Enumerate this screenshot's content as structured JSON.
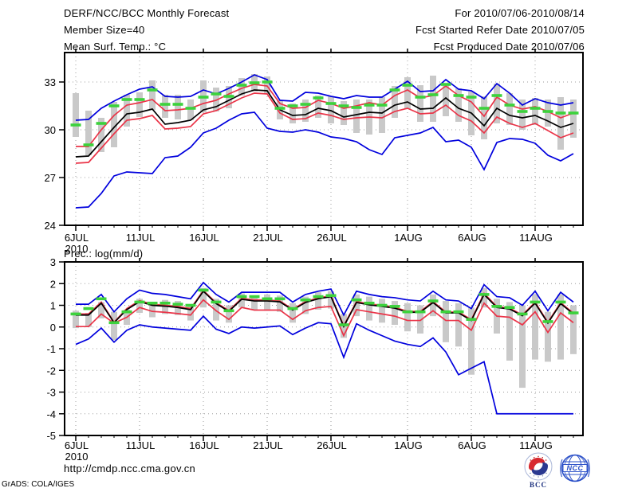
{
  "header": {
    "title": "DERF/NCC/BCC Monthly Forecast",
    "member_size": "Member Size=40",
    "for_range": "For 2010/07/06-2010/08/14",
    "fcst_refer_date": "Fcst Started Refer Date 2010/07/05",
    "fcst_produced_date": "Fcst Produced Date 2010/07/06"
  },
  "footer": {
    "url": "http://cmdp.ncc.cma.gov.cn",
    "credit": "GrADS: COLA/IGES",
    "logos": [
      {
        "label": "BCC"
      },
      {
        "label": "NCC"
      }
    ]
  },
  "colors": {
    "blue": "#0000dd",
    "red": "#ea3448",
    "black": "#000000",
    "green": "#3cd23c",
    "bar_gray": "#c9c9c9",
    "grid": "#9c9c9c"
  },
  "chart_data": [
    {
      "id": "temp",
      "type": "line",
      "title": "Mean Surf. Temp.: °C",
      "ylim": [
        24,
        34.85
      ],
      "yticks": [
        24,
        27,
        30,
        33
      ],
      "grid": true,
      "x": {
        "tick_labels": [
          "6JUL",
          "11JUL",
          "16JUL",
          "21JUL",
          "26JUL",
          "1AUG",
          "6AUG",
          "11AUG"
        ],
        "tick_days": [
          0,
          5,
          10,
          15,
          20,
          26,
          31,
          36
        ],
        "year_label": "2010",
        "n_points": 40
      },
      "series": [
        {
          "name": "ensemble-max",
          "color": "blue",
          "values": [
            30.6,
            30.65,
            31.35,
            31.8,
            32.2,
            32.55,
            32.7,
            32.1,
            32.05,
            32.1,
            32.5,
            32.25,
            32.6,
            33.0,
            33.45,
            33.15,
            31.85,
            31.8,
            32.35,
            32.3,
            32.1,
            31.95,
            32.15,
            32.05,
            32.05,
            32.55,
            33.05,
            32.4,
            32.45,
            33.15,
            32.55,
            32.45,
            31.95,
            32.9,
            32.3,
            31.55,
            31.95,
            31.7,
            31.55,
            31.7
          ]
        },
        {
          "name": "mean-plus-std",
          "color": "red",
          "values": [
            28.95,
            28.95,
            30.0,
            30.9,
            31.55,
            31.7,
            31.9,
            31.2,
            31.25,
            31.35,
            31.65,
            31.85,
            32.25,
            32.6,
            32.85,
            32.75,
            31.65,
            31.35,
            31.4,
            31.85,
            31.65,
            31.35,
            31.5,
            31.7,
            31.55,
            32.15,
            32.5,
            32.0,
            32.15,
            32.75,
            32.15,
            31.75,
            30.85,
            32.05,
            31.55,
            31.3,
            31.45,
            31.15,
            30.75,
            31.05
          ]
        },
        {
          "name": "ensemble-mean",
          "color": "black",
          "values": [
            28.3,
            28.35,
            29.25,
            30.15,
            31.0,
            31.1,
            31.3,
            30.35,
            30.45,
            30.6,
            31.25,
            31.45,
            31.85,
            32.25,
            32.5,
            32.45,
            31.25,
            30.9,
            30.95,
            31.35,
            31.2,
            30.8,
            30.95,
            31.1,
            31.05,
            31.55,
            31.75,
            31.3,
            31.35,
            32.0,
            31.35,
            31.05,
            30.25,
            31.35,
            30.9,
            30.75,
            30.9,
            30.55,
            30.15,
            30.4
          ]
        },
        {
          "name": "mean-minus-std",
          "color": "red",
          "values": [
            27.9,
            27.95,
            28.85,
            29.75,
            30.6,
            30.7,
            30.9,
            30.05,
            30.1,
            30.2,
            31.0,
            31.2,
            31.6,
            32.0,
            32.3,
            32.25,
            31.05,
            30.65,
            30.7,
            31.05,
            30.9,
            30.65,
            30.75,
            30.8,
            30.75,
            31.15,
            31.35,
            31.0,
            31.05,
            31.55,
            30.9,
            30.55,
            29.8,
            30.8,
            30.4,
            30.15,
            30.4,
            29.95,
            29.5,
            29.8
          ]
        },
        {
          "name": "ensemble-min",
          "color": "blue",
          "values": [
            25.1,
            25.15,
            26.0,
            27.1,
            27.35,
            27.3,
            27.25,
            28.25,
            28.35,
            28.9,
            29.8,
            30.1,
            30.6,
            31.0,
            31.1,
            30.1,
            29.9,
            29.85,
            30.0,
            29.85,
            29.55,
            29.45,
            29.25,
            28.75,
            28.45,
            29.5,
            29.65,
            29.8,
            30.15,
            29.25,
            29.35,
            28.9,
            27.5,
            29.2,
            29.45,
            29.4,
            29.15,
            28.4,
            28.05,
            28.5
          ]
        }
      ],
      "obs_dashes": {
        "name": "observation",
        "color": "green",
        "values": [
          30.3,
          29.05,
          30.4,
          31.5,
          31.9,
          31.9,
          32.5,
          31.6,
          31.6,
          31.35,
          32.05,
          32.25,
          32.1,
          32.8,
          32.95,
          33.0,
          31.35,
          31.5,
          31.6,
          32.0,
          31.65,
          31.5,
          31.4,
          31.55,
          31.55,
          32.5,
          32.8,
          32.05,
          32.2,
          32.85,
          32.15,
          32.05,
          31.35,
          32.15,
          31.55,
          31.15,
          31.35,
          31.15,
          31.05,
          31.05
        ]
      },
      "spread_bars": {
        "color": "gray",
        "ranges": [
          [
            29.55,
            32.3
          ],
          [
            28.4,
            31.2
          ],
          [
            28.6,
            30.75
          ],
          [
            28.9,
            31.75
          ],
          [
            30.2,
            32.2
          ],
          [
            30.8,
            32.35
          ],
          [
            31.25,
            33.1
          ],
          [
            30.75,
            32.2
          ],
          [
            30.65,
            32.2
          ],
          [
            30.6,
            31.9
          ],
          [
            31.1,
            33.1
          ],
          [
            31.15,
            32.65
          ],
          [
            31.35,
            32.75
          ],
          [
            32.15,
            33.25
          ],
          [
            32.4,
            33.5
          ],
          [
            32.25,
            33.35
          ],
          [
            30.65,
            31.85
          ],
          [
            30.4,
            31.65
          ],
          [
            30.5,
            31.9
          ],
          [
            30.75,
            32.15
          ],
          [
            30.4,
            32.1
          ],
          [
            30.3,
            31.8
          ],
          [
            29.8,
            31.9
          ],
          [
            29.7,
            31.9
          ],
          [
            29.8,
            32.05
          ],
          [
            30.75,
            32.75
          ],
          [
            31.3,
            33.3
          ],
          [
            30.5,
            32.8
          ],
          [
            30.5,
            33.4
          ],
          [
            30.85,
            32.9
          ],
          [
            30.5,
            32.6
          ],
          [
            29.65,
            32.4
          ],
          [
            29.4,
            32.1
          ],
          [
            30.4,
            32.9
          ],
          [
            30.3,
            32.3
          ],
          [
            30.0,
            31.9
          ],
          [
            30.3,
            32.0
          ],
          [
            30.2,
            31.9
          ],
          [
            28.75,
            32.05
          ],
          [
            29.5,
            31.9
          ]
        ]
      }
    },
    {
      "id": "prec",
      "type": "line",
      "title": "Prec.: log(mm/d)",
      "ylim": [
        -5,
        3
      ],
      "yticks": [
        -5,
        -4,
        -3,
        -2,
        -1,
        0,
        1,
        2,
        3
      ],
      "grid": true,
      "x": {
        "tick_labels": [
          "6JUL",
          "11JUL",
          "16JUL",
          "21JUL",
          "26JUL",
          "1AUG",
          "6AUG",
          "11AUG"
        ],
        "tick_days": [
          0,
          5,
          10,
          15,
          20,
          26,
          31,
          36
        ],
        "year_label": "2010",
        "n_points": 40
      },
      "series": [
        {
          "name": "ensemble-max",
          "color": "blue",
          "values": [
            1.05,
            1.05,
            1.5,
            0.7,
            1.3,
            1.7,
            1.55,
            1.5,
            1.4,
            1.3,
            2.05,
            1.5,
            1.15,
            1.6,
            1.6,
            1.6,
            1.6,
            1.15,
            1.5,
            1.65,
            1.75,
            0.55,
            1.65,
            1.5,
            1.4,
            1.35,
            1.25,
            1.2,
            1.65,
            1.25,
            1.2,
            0.85,
            1.95,
            1.4,
            1.35,
            1.0,
            1.65,
            0.75,
            1.6,
            1.15
          ]
        },
        {
          "name": "mean-plus-std",
          "color": "red",
          "values": [
            0.6,
            0.6,
            1.15,
            0.22,
            0.85,
            1.22,
            1.05,
            1.0,
            0.95,
            0.85,
            1.68,
            1.12,
            0.76,
            1.32,
            1.25,
            1.25,
            1.2,
            0.82,
            1.17,
            1.34,
            1.44,
            0.06,
            1.17,
            1.06,
            1.0,
            0.91,
            0.72,
            0.72,
            1.17,
            0.69,
            0.69,
            0.34,
            1.55,
            0.94,
            0.87,
            0.56,
            1.14,
            0.22,
            1.12,
            0.64
          ]
        },
        {
          "name": "ensemble-mean",
          "color": "black",
          "values": [
            0.55,
            0.55,
            1.1,
            0.2,
            0.8,
            1.17,
            1.0,
            0.96,
            0.9,
            0.8,
            1.65,
            1.08,
            0.72,
            1.28,
            1.2,
            1.2,
            1.16,
            0.78,
            1.13,
            1.3,
            1.4,
            0.02,
            1.13,
            1.02,
            0.95,
            0.87,
            0.68,
            0.68,
            1.13,
            0.65,
            0.65,
            0.3,
            1.5,
            0.9,
            0.83,
            0.52,
            1.1,
            0.18,
            1.08,
            0.6
          ]
        },
        {
          "name": "mean-minus-std",
          "color": "red",
          "values": [
            0.02,
            0.02,
            0.6,
            0.18,
            0.45,
            0.9,
            0.72,
            0.68,
            0.62,
            0.55,
            1.25,
            0.75,
            0.35,
            0.9,
            0.78,
            0.78,
            0.78,
            0.35,
            0.75,
            0.9,
            0.95,
            -0.4,
            0.8,
            0.7,
            0.6,
            0.5,
            0.3,
            0.3,
            0.75,
            0.3,
            0.3,
            -0.15,
            1.1,
            0.5,
            0.45,
            0.1,
            0.7,
            -0.25,
            0.65,
            0.2
          ]
        },
        {
          "name": "ensemble-min",
          "color": "blue",
          "values": [
            -0.8,
            -0.55,
            -0.05,
            -0.7,
            -0.15,
            0.1,
            0.0,
            -0.05,
            -0.1,
            -0.15,
            0.5,
            -0.1,
            -0.3,
            0.0,
            -0.05,
            0.0,
            0.05,
            -0.35,
            -0.05,
            0.2,
            0.15,
            -1.4,
            0.15,
            -0.15,
            -0.4,
            -0.65,
            -0.8,
            -0.9,
            -0.5,
            -1.15,
            -2.2,
            -1.9,
            -1.6,
            -4.0,
            -4.0,
            -4.0,
            -4.0,
            -4.0,
            -4.0,
            -4.0
          ]
        }
      ],
      "obs_dashes": {
        "name": "observation",
        "color": "green",
        "values": [
          0.6,
          0.85,
          1.3,
          0.2,
          0.7,
          1.15,
          1.1,
          1.1,
          1.05,
          1.0,
          1.7,
          1.15,
          0.75,
          1.4,
          1.4,
          1.3,
          1.3,
          0.85,
          1.25,
          1.4,
          1.45,
          0.1,
          1.25,
          1.1,
          1.0,
          0.95,
          0.7,
          0.7,
          1.2,
          0.7,
          0.7,
          0.35,
          1.5,
          0.95,
          0.9,
          0.6,
          1.15,
          0.25,
          1.15,
          0.65
        ]
      },
      "spread_bars": {
        "color": "gray",
        "ranges": [
          [
            -0.05,
            0.75
          ],
          [
            0.0,
            0.65
          ],
          [
            0.4,
            1.15
          ],
          [
            -0.6,
            0.7
          ],
          [
            0.1,
            0.8
          ],
          [
            0.65,
            1.3
          ],
          [
            0.45,
            1.05
          ],
          [
            0.6,
            1.25
          ],
          [
            0.55,
            1.2
          ],
          [
            0.3,
            1.0
          ],
          [
            0.9,
            1.8
          ],
          [
            0.3,
            1.3
          ],
          [
            0.2,
            1.0
          ],
          [
            0.9,
            1.55
          ],
          [
            0.8,
            1.45
          ],
          [
            0.75,
            1.5
          ],
          [
            0.7,
            1.45
          ],
          [
            0.2,
            1.1
          ],
          [
            0.6,
            1.4
          ],
          [
            0.8,
            1.6
          ],
          [
            0.85,
            1.65
          ],
          [
            -0.5,
            0.6
          ],
          [
            0.5,
            1.5
          ],
          [
            0.3,
            1.4
          ],
          [
            0.2,
            1.3
          ],
          [
            0.1,
            1.2
          ],
          [
            -0.2,
            1.1
          ],
          [
            -0.3,
            1.0
          ],
          [
            0.5,
            1.5
          ],
          [
            -0.7,
            1.2
          ],
          [
            -0.9,
            1.1
          ],
          [
            -2.2,
            0.9
          ],
          [
            0.9,
            1.8
          ],
          [
            -0.3,
            1.3
          ],
          [
            -1.55,
            1.15
          ],
          [
            -2.8,
            1.0
          ],
          [
            -1.5,
            1.5
          ],
          [
            -1.6,
            0.7
          ],
          [
            -1.5,
            1.5
          ],
          [
            -1.25,
            1.0
          ]
        ]
      }
    }
  ]
}
